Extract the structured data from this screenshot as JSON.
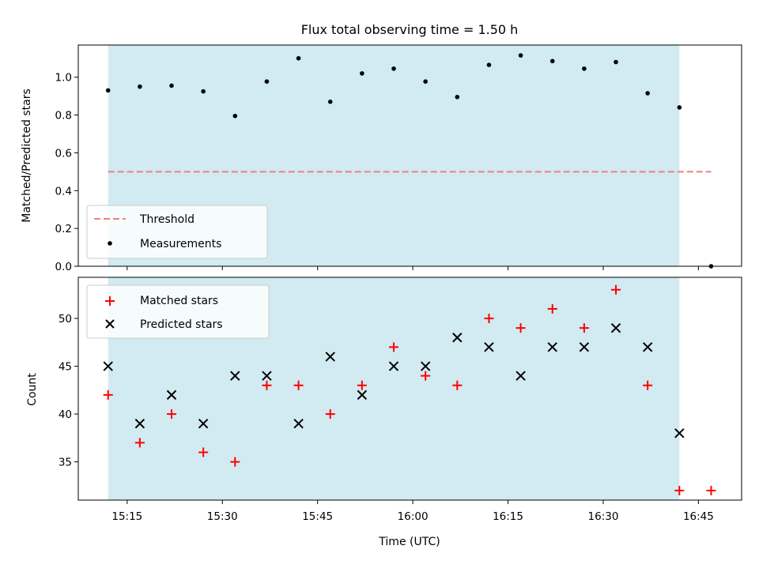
{
  "chart_data": {
    "title": "Flux total observing time = 1.50 h",
    "xlabel": "Time (UTC)",
    "x_tick_labels": [
      "15:15",
      "15:30",
      "15:45",
      "16:00",
      "16:15",
      "16:30",
      "16:45"
    ],
    "x_tick_values": [
      "15:15",
      "15:30",
      "15:45",
      "16:00",
      "16:15",
      "16:30",
      "16:45"
    ],
    "shaded_interval": {
      "start": "15:12",
      "end": "16:42",
      "color": "#add8e6"
    },
    "top": {
      "type": "scatter",
      "ylabel": "Matched/Predicted stars",
      "ylim": [
        0,
        1.17
      ],
      "y_ticks": [
        "0.0",
        "0.2",
        "0.4",
        "0.6",
        "0.8",
        "1.0"
      ],
      "legend_position": "lower-left",
      "threshold": {
        "name": "Threshold",
        "value": 0.5,
        "x_start": "15:12",
        "x_end": "16:47",
        "color": "#f08080"
      },
      "measurements": {
        "name": "Measurements",
        "color": "#000000",
        "x": [
          "15:12",
          "15:17",
          "15:22",
          "15:27",
          "15:32",
          "15:37",
          "15:42",
          "15:47",
          "15:52",
          "15:57",
          "16:02",
          "16:07",
          "16:12",
          "16:17",
          "16:22",
          "16:27",
          "16:32",
          "16:37",
          "16:42",
          "16:47"
        ],
        "values": [
          0.93,
          0.95,
          0.955,
          0.925,
          0.795,
          0.977,
          1.1,
          0.87,
          1.02,
          1.045,
          0.977,
          0.895,
          1.065,
          1.115,
          1.085,
          1.045,
          1.08,
          0.915,
          0.84,
          0.0
        ]
      }
    },
    "bottom": {
      "type": "scatter",
      "ylabel": "Count",
      "ylim": [
        31,
        54.3
      ],
      "y_ticks": [
        "35",
        "40",
        "45",
        "50"
      ],
      "legend_position": "upper-left",
      "series": [
        {
          "name": "Matched stars",
          "marker": "+",
          "color": "#ff0000",
          "x": [
            "15:12",
            "15:17",
            "15:22",
            "15:27",
            "15:32",
            "15:37",
            "15:42",
            "15:47",
            "15:52",
            "15:57",
            "16:02",
            "16:07",
            "16:12",
            "16:17",
            "16:22",
            "16:27",
            "16:32",
            "16:37",
            "16:42",
            "16:47"
          ],
          "values": [
            42,
            37,
            40,
            36,
            35,
            43,
            43,
            40,
            43,
            47,
            44,
            43,
            50,
            49,
            51,
            49,
            53,
            43,
            32,
            32
          ]
        },
        {
          "name": "Predicted stars",
          "marker": "x",
          "color": "#000000",
          "x": [
            "15:12",
            "15:17",
            "15:22",
            "15:27",
            "15:32",
            "15:37",
            "15:42",
            "15:47",
            "15:52",
            "15:57",
            "16:02",
            "16:07",
            "16:12",
            "16:17",
            "16:22",
            "16:27",
            "16:32",
            "16:37",
            "16:42"
          ],
          "values": [
            45,
            39,
            42,
            39,
            44,
            44,
            39,
            46,
            42,
            45,
            45,
            48,
            47,
            44,
            47,
            47,
            49,
            47,
            38
          ]
        }
      ]
    }
  }
}
